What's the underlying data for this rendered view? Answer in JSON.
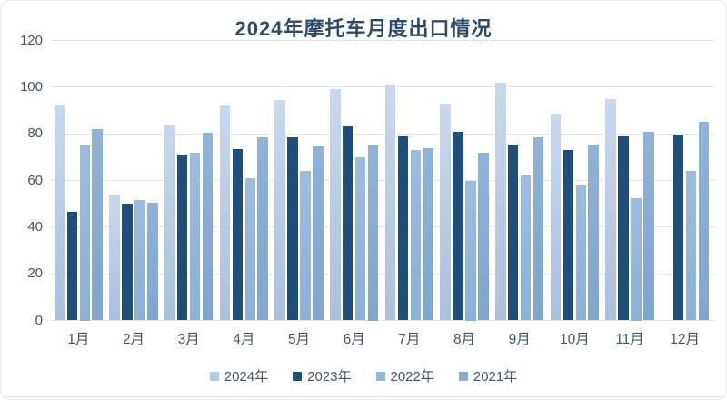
{
  "title": "2024年摩托车月度出口情况",
  "colors": {
    "title_text": "#2e4a6b",
    "axis_text": "#44546a",
    "gridline": "#e2e6ec",
    "background": "#ffffff"
  },
  "chart_data": {
    "type": "bar",
    "title": "2024年摩托车月度出口情况",
    "categories": [
      "1月",
      "2月",
      "3月",
      "4月",
      "5月",
      "6月",
      "7月",
      "8月",
      "9月",
      "10月",
      "11月",
      "12月"
    ],
    "series": [
      {
        "name": "2024年",
        "fill_top": "#c9d8ec",
        "fill_bottom": "#a9c0dd",
        "legend_color": "#b5c9e4",
        "values": [
          92,
          54,
          84,
          92,
          94.5,
          99,
          101,
          93,
          102,
          88.5,
          95,
          null
        ]
      },
      {
        "name": "2023年",
        "fill_top": "#1f4e79",
        "fill_bottom": "#1f4e79",
        "legend_color": "#1f4e79",
        "values": [
          46.5,
          50,
          71,
          73.5,
          78.5,
          83,
          79,
          81,
          75.5,
          73,
          79,
          79.5
        ]
      },
      {
        "name": "2022年",
        "fill_top": "#9cbcdf",
        "fill_bottom": "#8bb1d6",
        "legend_color": "#92b6da",
        "values": [
          75,
          51.5,
          72,
          61,
          64,
          70,
          73,
          60,
          62,
          58,
          52.5,
          64
        ]
      },
      {
        "name": "2021年",
        "fill_top": "#8fb2d8",
        "fill_bottom": "#7fa6cd",
        "legend_color": "#85acd2",
        "values": [
          82,
          50.5,
          80.5,
          78.5,
          74.5,
          75,
          74,
          72,
          78.5,
          75.5,
          81,
          85
        ]
      }
    ],
    "xlabel": "",
    "ylabel": "",
    "ylim": [
      0,
      120
    ],
    "yticks": [
      0,
      20,
      40,
      60,
      80,
      100,
      120
    ],
    "grid": true,
    "legend_position": "bottom"
  }
}
